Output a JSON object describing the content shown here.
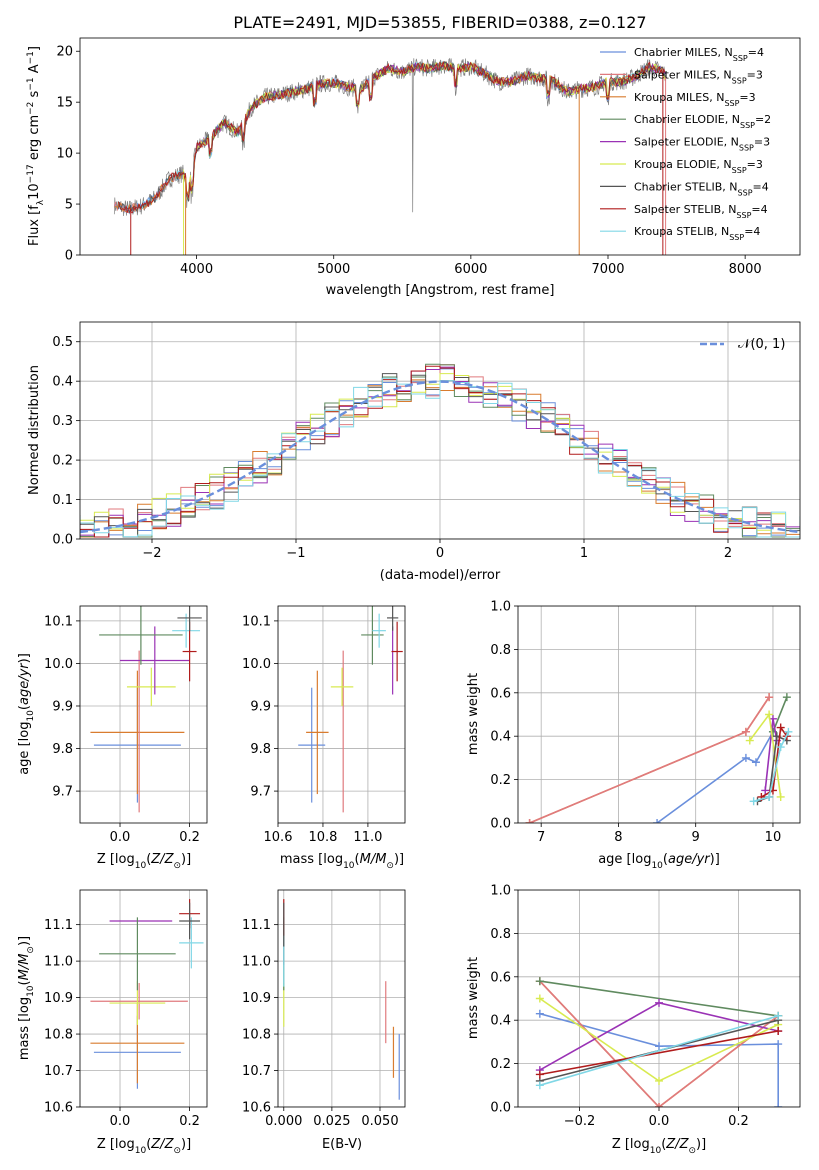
{
  "title": "PLATE=2491, MJD=53855, FIBERID=0388, z=0.127",
  "colors": {
    "Chabrier MILES": "#6a8fdc",
    "Salpeter MILES": "#e07a7e",
    "Kroupa MILES": "#d97c2f",
    "Chabrier ELODIE": "#5f8a5f",
    "Salpeter ELODIE": "#9a32b5",
    "Kroupa ELODIE": "#d8ea50",
    "Chabrier STELIB": "#555555",
    "Salpeter STELIB": "#b01c1c",
    "Kroupa STELIB": "#80d7e6",
    "normal": "#6a8fdc",
    "gray_spectrum": "#7f7f7f"
  },
  "chart_data": [
    {
      "id": "spectrum",
      "type": "line",
      "xlabel": "wavelength [Angstrom, rest frame]",
      "ylabel": "Flux [f_λ10^-17 erg cm^-2 s^-1 A^-1]",
      "xlim": [
        3150,
        8400
      ],
      "ylim": [
        0,
        21.3
      ],
      "xticks": [
        "4000",
        "5000",
        "6000",
        "7000",
        "8000"
      ],
      "yticks": [
        "0",
        "5",
        "10",
        "15",
        "20"
      ],
      "legend_position": "right",
      "legend": [
        {
          "name": "Chabrier MILES, N",
          "sub": "SSP",
          "tail": "=4"
        },
        {
          "name": "Salpeter MILES, N",
          "sub": "SSP",
          "tail": "=3"
        },
        {
          "name": "Kroupa MILES, N",
          "sub": "SSP",
          "tail": "=3"
        },
        {
          "name": "Chabrier ELODIE, N",
          "sub": "SSP",
          "tail": "=2"
        },
        {
          "name": "Salpeter ELODIE, N",
          "sub": "SSP",
          "tail": "=3"
        },
        {
          "name": "Kroupa ELODIE, N",
          "sub": "SSP",
          "tail": "=3"
        },
        {
          "name": "Chabrier STELIB, N",
          "sub": "SSP",
          "tail": "=4"
        },
        {
          "name": "Salpeter STELIB, N",
          "sub": "SSP",
          "tail": "=4"
        },
        {
          "name": "Kroupa STELIB, N",
          "sub": "SSP",
          "tail": "=4"
        }
      ],
      "continuum": [
        [
          3400,
          4.9
        ],
        [
          3500,
          4.5
        ],
        [
          3600,
          4.8
        ],
        [
          3700,
          5.6
        ],
        [
          3800,
          7.5
        ],
        [
          3900,
          8.0
        ],
        [
          3950,
          7.0
        ],
        [
          4000,
          10.5
        ],
        [
          4100,
          11.5
        ],
        [
          4200,
          13.0
        ],
        [
          4300,
          12.0
        ],
        [
          4400,
          14.5
        ],
        [
          4500,
          15.5
        ],
        [
          4600,
          15.7
        ],
        [
          4700,
          16.0
        ],
        [
          4800,
          16.3
        ],
        [
          4900,
          16.8
        ],
        [
          5000,
          16.9
        ],
        [
          5100,
          16.5
        ],
        [
          5200,
          16.3
        ],
        [
          5300,
          17.5
        ],
        [
          5400,
          18.3
        ],
        [
          5500,
          18.0
        ],
        [
          5600,
          18.5
        ],
        [
          5700,
          18.3
        ],
        [
          5800,
          18.6
        ],
        [
          5900,
          18.3
        ],
        [
          6000,
          18.5
        ],
        [
          6100,
          17.8
        ],
        [
          6200,
          17.0
        ],
        [
          6300,
          17.0
        ],
        [
          6400,
          17.6
        ],
        [
          6500,
          17.4
        ],
        [
          6600,
          17.1
        ],
        [
          6700,
          16.0
        ],
        [
          6800,
          16.3
        ],
        [
          6900,
          16.5
        ],
        [
          7000,
          17.0
        ],
        [
          7100,
          17.0
        ],
        [
          7200,
          17.5
        ],
        [
          7300,
          18.5
        ],
        [
          7400,
          18.0
        ],
        [
          7420,
          17.5
        ]
      ]
    },
    {
      "id": "residuals",
      "type": "histogram",
      "xlabel": "(data-model)/error",
      "ylabel": "Normed distribution",
      "xlim": [
        -2.5,
        2.5
      ],
      "ylim": [
        0,
        0.55
      ],
      "xticks": [
        "−2",
        "−1",
        "0",
        "1",
        "2"
      ],
      "yticks": [
        "0.0",
        "0.1",
        "0.2",
        "0.3",
        "0.4",
        "0.5"
      ],
      "grid": true,
      "legend_position": "top-right",
      "legend_label": "𝒩(0, 1)",
      "bin_width": 0.1
    },
    {
      "id": "age-vs-Z",
      "type": "scatter",
      "xlabel": "Z [log10(Z/Z⊙)]",
      "ylabel": "age  [log10(age/yr)]",
      "xlim": [
        -0.115,
        0.25
      ],
      "ylim": [
        9.625,
        10.135
      ],
      "xticks": [
        "0.0",
        "0.2"
      ],
      "yticks": [
        "9.7",
        "9.8",
        "9.9",
        "10.0",
        "10.1"
      ],
      "grid": true,
      "points": [
        {
          "model": "Chabrier MILES",
          "x": 0.05,
          "xerr": 0.125,
          "y": 9.808,
          "yerr": 0.135
        },
        {
          "model": "Kroupa MILES",
          "x": 0.05,
          "xerr": 0.135,
          "y": 9.838,
          "yerr": 0.145
        },
        {
          "model": "Salpeter MILES",
          "x": 0.055,
          "xerr": 0.0,
          "y": 9.84,
          "yerr": 0.19
        },
        {
          "model": "Kroupa ELODIE",
          "x": 0.09,
          "xerr": 0.07,
          "y": 9.945,
          "yerr": 0.045
        },
        {
          "model": "Salpeter ELODIE",
          "x": 0.1,
          "xerr": 0.1,
          "y": 10.007,
          "yerr": 0.08
        },
        {
          "model": "Chabrier ELODIE",
          "x": 0.06,
          "xerr": 0.12,
          "y": 10.067,
          "yerr": 0.07
        },
        {
          "model": "Kroupa STELIB",
          "x": 0.19,
          "xerr": 0.04,
          "y": 10.077,
          "yerr": 0.04
        },
        {
          "model": "Salpeter STELIB",
          "x": 0.2,
          "xerr": 0.02,
          "y": 10.028,
          "yerr": 0.07
        },
        {
          "model": "Chabrier STELIB",
          "x": 0.2,
          "xerr": 0.035,
          "y": 10.107,
          "yerr": 0.03
        }
      ]
    },
    {
      "id": "age-vs-mass",
      "type": "scatter",
      "xlabel": "mass [log10(M/M⊙)]",
      "ylabel": "",
      "xlim": [
        10.6,
        11.165
      ],
      "ylim": [
        9.625,
        10.135
      ],
      "xticks": [
        "10.6",
        "10.8",
        "11.0"
      ],
      "yticks": [
        "9.7",
        "9.8",
        "9.9",
        "10.0",
        "10.1"
      ],
      "grid": true,
      "points": [
        {
          "model": "Chabrier MILES",
          "x": 10.75,
          "xerr": 0.06,
          "y": 9.808,
          "yerr": 0.135
        },
        {
          "model": "Kroupa MILES",
          "x": 10.775,
          "xerr": 0.05,
          "y": 9.838,
          "yerr": 0.145
        },
        {
          "model": "Salpeter MILES",
          "x": 10.89,
          "xerr": 0.0,
          "y": 9.84,
          "yerr": 0.19
        },
        {
          "model": "Kroupa ELODIE",
          "x": 10.885,
          "xerr": 0.05,
          "y": 9.945,
          "yerr": 0.045
        },
        {
          "model": "Salpeter ELODIE",
          "x": 11.11,
          "xerr": 0.0,
          "y": 10.007,
          "yerr": 0.08
        },
        {
          "model": "Chabrier ELODIE",
          "x": 11.02,
          "xerr": 0.05,
          "y": 10.067,
          "yerr": 0.07
        },
        {
          "model": "Kroupa STELIB",
          "x": 11.05,
          "xerr": 0.03,
          "y": 10.077,
          "yerr": 0.04
        },
        {
          "model": "Salpeter STELIB",
          "x": 11.13,
          "xerr": 0.025,
          "y": 10.028,
          "yerr": 0.07
        },
        {
          "model": "Chabrier STELIB",
          "x": 11.11,
          "xerr": 0.025,
          "y": 10.107,
          "yerr": 0.03
        }
      ]
    },
    {
      "id": "massweight-vs-age",
      "type": "line",
      "xlabel": "age  [log10(age/yr)]",
      "ylabel": "mass weight",
      "xlim": [
        6.7,
        10.35
      ],
      "ylim": [
        0,
        1
      ],
      "xticks": [
        "7",
        "8",
        "9",
        "10"
      ],
      "yticks": [
        "0.0",
        "0.2",
        "0.4",
        "0.6",
        "0.8",
        "1.0"
      ],
      "grid": true,
      "series": [
        {
          "model": "Chabrier MILES",
          "points": [
            [
              8.5,
              0
            ],
            [
              9.65,
              0.3
            ],
            [
              9.78,
              0.28
            ],
            [
              10.0,
              0.42
            ]
          ]
        },
        {
          "model": "Kroupa MILES",
          "points": [
            [
              6.85,
              0
            ],
            [
              9.65,
              0.42
            ],
            [
              9.95,
              0.58
            ]
          ]
        },
        {
          "model": "Salpeter MILES",
          "points": [
            [
              6.85,
              0
            ],
            [
              9.65,
              0.42
            ],
            [
              9.95,
              0.58
            ]
          ]
        },
        {
          "model": "Chabrier ELODIE",
          "points": [
            [
              10.0,
              0.42
            ],
            [
              10.18,
              0.58
            ]
          ]
        },
        {
          "model": "Salpeter ELODIE",
          "points": [
            [
              9.9,
              0.15
            ],
            [
              10.0,
              0.48
            ],
            [
              10.05,
              0.38
            ]
          ]
        },
        {
          "model": "Kroupa ELODIE",
          "points": [
            [
              9.7,
              0.38
            ],
            [
              9.95,
              0.5
            ],
            [
              10.1,
              0.12
            ]
          ]
        },
        {
          "model": "Chabrier STELIB",
          "points": [
            [
              9.8,
              0.1
            ],
            [
              9.95,
              0.12
            ],
            [
              10.05,
              0.4
            ],
            [
              10.18,
              0.38
            ]
          ]
        },
        {
          "model": "Salpeter STELIB",
          "points": [
            [
              9.85,
              0.12
            ],
            [
              10.0,
              0.15
            ],
            [
              10.1,
              0.44
            ],
            [
              10.18,
              0.4
            ]
          ]
        },
        {
          "model": "Kroupa STELIB",
          "points": [
            [
              9.75,
              0.1
            ],
            [
              9.95,
              0.12
            ],
            [
              10.1,
              0.35
            ],
            [
              10.2,
              0.42
            ]
          ]
        }
      ]
    },
    {
      "id": "mass-vs-Z",
      "type": "scatter",
      "xlabel": "Z [log10(Z/Z⊙)]",
      "ylabel": "mass [log10(M/M⊙)]",
      "xlim": [
        -0.115,
        0.25
      ],
      "ylim": [
        10.6,
        11.195
      ],
      "xticks": [
        "0.0",
        "0.2"
      ],
      "yticks": [
        "10.6",
        "10.7",
        "10.8",
        "10.9",
        "11.0",
        "11.1"
      ],
      "grid": true,
      "points": [
        {
          "model": "Chabrier MILES",
          "x": 0.05,
          "xerr": 0.125,
          "y": 10.75,
          "yerr": 0.1
        },
        {
          "model": "Kroupa MILES",
          "x": 0.05,
          "xerr": 0.135,
          "y": 10.775,
          "yerr": 0.11
        },
        {
          "model": "Salpeter MILES",
          "x": 0.055,
          "xerr": 0.14,
          "y": 10.89,
          "yerr": 0.05
        },
        {
          "model": "Kroupa ELODIE",
          "x": 0.05,
          "xerr": 0.08,
          "y": 10.885,
          "yerr": 0.06
        },
        {
          "model": "Salpeter ELODIE",
          "x": 0.06,
          "xerr": 0.09,
          "y": 11.11,
          "yerr": 0.0
        },
        {
          "model": "Chabrier ELODIE",
          "x": 0.05,
          "xerr": 0.11,
          "y": 11.02,
          "yerr": 0.1
        },
        {
          "model": "Kroupa STELIB",
          "x": 0.205,
          "xerr": 0.035,
          "y": 11.05,
          "yerr": 0.07
        },
        {
          "model": "Salpeter STELIB",
          "x": 0.2,
          "xerr": 0.03,
          "y": 11.13,
          "yerr": 0.04
        },
        {
          "model": "Chabrier STELIB",
          "x": 0.2,
          "xerr": 0.03,
          "y": 11.11,
          "yerr": 0.05
        }
      ]
    },
    {
      "id": "mass-vs-ebv",
      "type": "scatter",
      "xlabel": "E(B-V)",
      "ylabel": "",
      "xlim": [
        -0.003,
        0.063
      ],
      "ylim": [
        10.6,
        11.195
      ],
      "xticks": [
        "0.000",
        "0.025",
        "0.050"
      ],
      "yticks": [
        "10.6",
        "10.7",
        "10.8",
        "10.9",
        "11.0",
        "11.1"
      ],
      "grid": true,
      "points": [
        {
          "model": "Chabrier MILES",
          "x": 0.06,
          "y": 10.71,
          "yerr": 0.09
        },
        {
          "model": "Kroupa MILES",
          "x": 0.057,
          "y": 10.75,
          "yerr": 0.07
        },
        {
          "model": "Salpeter MILES",
          "x": 0.053,
          "y": 10.86,
          "yerr": 0.085
        },
        {
          "model": "Kroupa ELODIE",
          "x": 0.0,
          "y": 10.88,
          "yerr": 0.06
        },
        {
          "model": "Salpeter ELODIE",
          "x": 0.0,
          "y": 11.05,
          "yerr": 0.06
        },
        {
          "model": "Chabrier ELODIE",
          "x": 0.0,
          "y": 11.02,
          "yerr": 0.1
        },
        {
          "model": "Kroupa STELIB",
          "x": 0.0,
          "y": 11.0,
          "yerr": 0.07
        },
        {
          "model": "Salpeter STELIB",
          "x": 0.0,
          "y": 11.12,
          "yerr": 0.05
        },
        {
          "model": "Chabrier STELIB",
          "x": 0.0,
          "y": 11.1,
          "yerr": 0.06
        }
      ]
    },
    {
      "id": "massweight-vs-Z",
      "type": "line",
      "xlabel": "Z [log10(Z/Z⊙)]",
      "ylabel": "mass weight",
      "xlim": [
        -0.355,
        0.355
      ],
      "ylim": [
        0,
        1
      ],
      "xticks": [
        "−0.2",
        "0.0",
        "0.2"
      ],
      "yticks": [
        "0.0",
        "0.2",
        "0.4",
        "0.6",
        "0.8",
        "1.0"
      ],
      "grid": true,
      "series": [
        {
          "model": "Chabrier MILES",
          "points": [
            [
              -0.3,
              0.43
            ],
            [
              0.0,
              0.28
            ],
            [
              0.3,
              0.29
            ],
            [
              0.3,
              0.0
            ]
          ]
        },
        {
          "model": "Kroupa MILES",
          "points": [
            [
              -0.3,
              0.58
            ],
            [
              0.0,
              0.0
            ],
            [
              0.3,
              0.42
            ]
          ]
        },
        {
          "model": "Salpeter MILES",
          "points": [
            [
              -0.3,
              0.58
            ],
            [
              0.0,
              0.0
            ],
            [
              0.3,
              0.42
            ]
          ]
        },
        {
          "model": "Chabrier ELODIE",
          "points": [
            [
              -0.3,
              0.58
            ],
            [
              0.3,
              0.42
            ]
          ]
        },
        {
          "model": "Salpeter ELODIE",
          "points": [
            [
              -0.3,
              0.17
            ],
            [
              0.0,
              0.48
            ],
            [
              0.3,
              0.35
            ]
          ]
        },
        {
          "model": "Kroupa ELODIE",
          "points": [
            [
              -0.3,
              0.5
            ],
            [
              0.0,
              0.12
            ],
            [
              0.3,
              0.38
            ]
          ]
        },
        {
          "model": "Chabrier STELIB",
          "points": [
            [
              -0.3,
              0.12
            ],
            [
              0.3,
              0.4
            ]
          ]
        },
        {
          "model": "Salpeter STELIB",
          "points": [
            [
              -0.3,
              0.15
            ],
            [
              0.3,
              0.35
            ]
          ]
        },
        {
          "model": "Kroupa STELIB",
          "points": [
            [
              -0.3,
              0.1
            ],
            [
              0.3,
              0.42
            ]
          ]
        }
      ]
    }
  ]
}
